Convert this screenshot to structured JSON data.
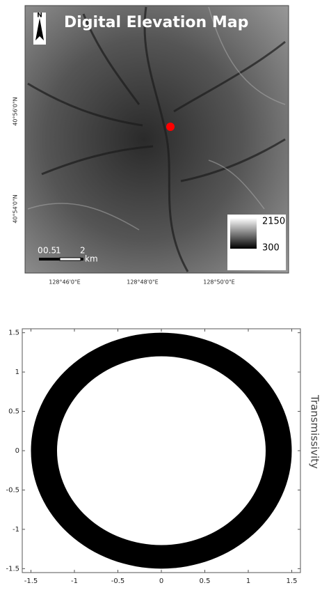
{
  "map": {
    "title": "Digital Elevation Map",
    "north": "N",
    "lat_labels": [
      "40°56'0\"N",
      "40°54'0\"N"
    ],
    "lon_labels": [
      "128°46'0\"E",
      "128°48'0\"E",
      "128°50'0\"E"
    ],
    "scale_labels": [
      "0",
      "0.5",
      "1",
      "2",
      "km"
    ],
    "legend_max": "2150",
    "legend_min": "300"
  },
  "chart_data": {
    "type": "ring",
    "ylabel": "Transmissivity",
    "outer_radius": 1.5,
    "inner_radius": 1.2,
    "xlim": [
      -1.6,
      1.6
    ],
    "ylim": [
      -1.55,
      1.55
    ],
    "xticks": [
      -1.5,
      -1,
      -0.5,
      0,
      0.5,
      1,
      1.5
    ],
    "yticks": [
      -1.5,
      -1,
      -0.5,
      0,
      0.5,
      1,
      1.5
    ]
  }
}
